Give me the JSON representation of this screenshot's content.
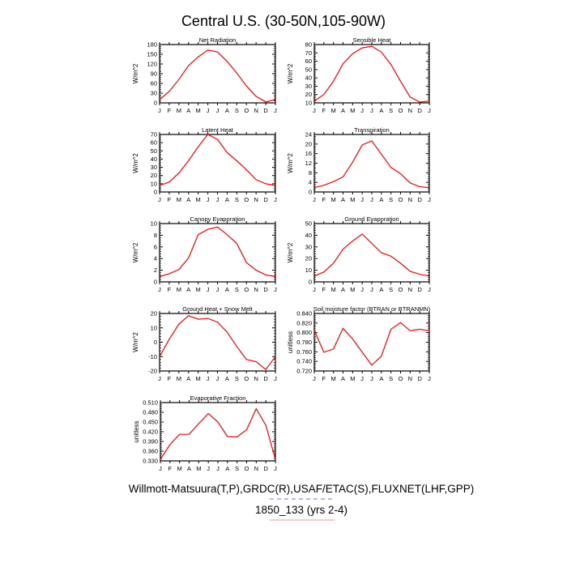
{
  "title": "Central U.S. (30-50N,105-90W)",
  "footer": {
    "line1": "Willmott-Matsuura(T,P),GRDC(R),USAF/ETAC(S),FLUXNET(LHF,GPP)",
    "line2": "1850_133 (yrs 2-4)",
    "line1_underline_color": "#6f6ff5",
    "line2_underline_color": "#f29a9a"
  },
  "colors": {
    "series": "#ff0000",
    "axis": "#000000"
  },
  "chart_data": [
    {
      "type": "line",
      "title": "Net Radiation",
      "ylabel": "W/m^2",
      "ylim": [
        0,
        180
      ],
      "yticks": [
        "0",
        "30",
        "60",
        "90",
        "120",
        "150",
        "180"
      ],
      "categories": [
        "J",
        "F",
        "M",
        "A",
        "M",
        "J",
        "J",
        "A",
        "S",
        "O",
        "N",
        "D",
        "J"
      ],
      "values": [
        10,
        35,
        72,
        115,
        142,
        163,
        157,
        128,
        92,
        52,
        20,
        3,
        10
      ]
    },
    {
      "type": "line",
      "title": "Sensible Heat",
      "ylabel": "W/m^2",
      "ylim": [
        10,
        80
      ],
      "yticks": [
        "10",
        "20",
        "30",
        "40",
        "50",
        "60",
        "70",
        "80"
      ],
      "categories": [
        "J",
        "F",
        "M",
        "A",
        "M",
        "J",
        "J",
        "A",
        "S",
        "O",
        "N",
        "D",
        "J"
      ],
      "values": [
        12,
        20,
        36,
        57,
        69,
        76,
        78,
        71,
        56,
        36,
        17,
        11,
        12
      ]
    },
    {
      "type": "line",
      "title": "Latent Heat",
      "ylabel": "W/m^2",
      "ylim": [
        0,
        70
      ],
      "yticks": [
        "0",
        "10",
        "20",
        "30",
        "40",
        "50",
        "60",
        "70"
      ],
      "categories": [
        "J",
        "F",
        "M",
        "A",
        "M",
        "J",
        "J",
        "A",
        "S",
        "O",
        "N",
        "D",
        "J"
      ],
      "values": [
        8,
        12,
        23,
        38,
        55,
        70,
        64,
        48,
        38,
        27,
        15,
        10,
        8
      ]
    },
    {
      "type": "line",
      "title": "Transpiration",
      "ylabel": "W/m^2",
      "ylim": [
        0,
        24
      ],
      "yticks": [
        "0",
        "4",
        "8",
        "12",
        "16",
        "20",
        "24"
      ],
      "categories": [
        "J",
        "F",
        "M",
        "A",
        "M",
        "J",
        "J",
        "A",
        "S",
        "O",
        "N",
        "D",
        "J"
      ],
      "values": [
        1.8,
        2.8,
        4.3,
        6.3,
        12.4,
        19.6,
        21.3,
        15.8,
        10.2,
        7.6,
        3.8,
        2.2,
        1.8
      ]
    },
    {
      "type": "line",
      "title": "Canopy Evaporation",
      "ylabel": "W/m^2",
      "ylim": [
        0,
        10
      ],
      "yticks": [
        "0",
        "2",
        "4",
        "6",
        "8",
        "10"
      ],
      "categories": [
        "J",
        "F",
        "M",
        "A",
        "M",
        "J",
        "J",
        "A",
        "S",
        "O",
        "N",
        "D",
        "J"
      ],
      "values": [
        0.9,
        1.4,
        2.1,
        4.1,
        8.1,
        9.0,
        9.4,
        8.1,
        6.6,
        3.3,
        2.0,
        1.2,
        0.9
      ]
    },
    {
      "type": "line",
      "title": "Ground Evaporation",
      "ylabel": "W/m^2",
      "ylim": [
        0,
        50
      ],
      "yticks": [
        "0",
        "10",
        "20",
        "30",
        "40",
        "50"
      ],
      "categories": [
        "J",
        "F",
        "M",
        "A",
        "M",
        "J",
        "J",
        "A",
        "S",
        "O",
        "N",
        "D",
        "J"
      ],
      "values": [
        5,
        8.5,
        16,
        28,
        35,
        41,
        33,
        25,
        22,
        16,
        9,
        6.5,
        5
      ]
    },
    {
      "type": "line",
      "title": "Ground Heat + Snow Melt",
      "ylabel": "W/m^2",
      "ylim": [
        -20,
        20
      ],
      "yticks": [
        "-20",
        "-10",
        "0",
        "10",
        "20"
      ],
      "categories": [
        "J",
        "F",
        "M",
        "A",
        "M",
        "J",
        "J",
        "A",
        "S",
        "O",
        "N",
        "D",
        "J"
      ],
      "values": [
        -10,
        2,
        12.5,
        18.5,
        16,
        16.5,
        14,
        7,
        -3,
        -12,
        -13.5,
        -19,
        -10
      ]
    },
    {
      "type": "line",
      "title": "Soil moisture factor (BTRAN or BTRANMN)",
      "ylabel": "unitless",
      "ylim": [
        0.72,
        0.84
      ],
      "yticks": [
        "0.720",
        "0.740",
        "0.760",
        "0.780",
        "0.800",
        "0.820",
        "0.840"
      ],
      "categories": [
        "J",
        "F",
        "M",
        "A",
        "M",
        "J",
        "J",
        "A",
        "S",
        "O",
        "N",
        "D",
        "J"
      ],
      "values": [
        0.805,
        0.759,
        0.766,
        0.809,
        0.787,
        0.759,
        0.732,
        0.751,
        0.807,
        0.821,
        0.804,
        0.807,
        0.804
      ]
    },
    {
      "type": "line",
      "title": "Evaporative Fraction",
      "ylabel": "unitless",
      "ylim": [
        0.33,
        0.51
      ],
      "yticks": [
        "0.330",
        "0.360",
        "0.390",
        "0.420",
        "0.450",
        "0.480",
        "0.510"
      ],
      "categories": [
        "J",
        "F",
        "M",
        "A",
        "M",
        "J",
        "J",
        "A",
        "S",
        "O",
        "N",
        "D",
        "J"
      ],
      "values": [
        0.335,
        0.38,
        0.412,
        0.412,
        0.445,
        0.476,
        0.45,
        0.405,
        0.404,
        0.426,
        0.491,
        0.44,
        0.335
      ]
    }
  ]
}
